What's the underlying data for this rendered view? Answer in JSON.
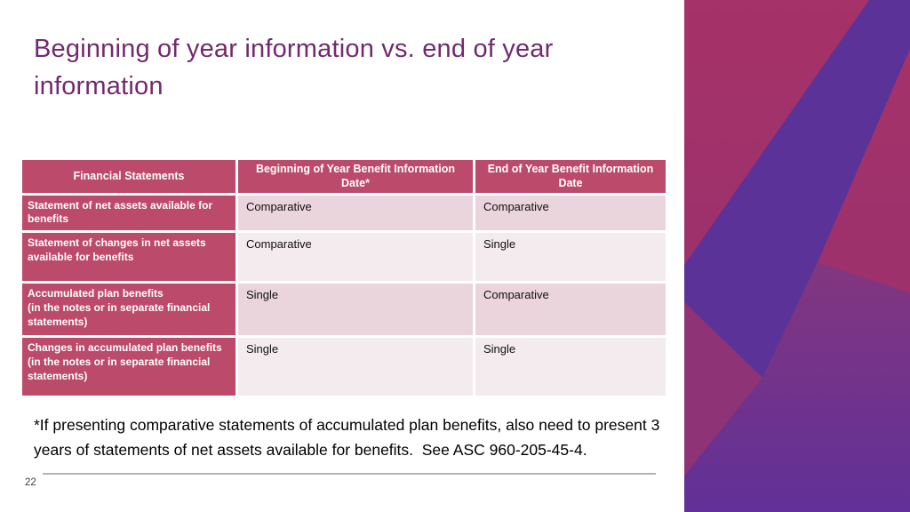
{
  "slide": {
    "title": "Beginning of year information vs. end of year information",
    "footnote": "*If presenting comparative statements of accumulated plan benefits, also need to present 3 years of statements of net assets available for benefits.  See ASC 960-205-45-4.",
    "page_number": "22"
  },
  "table": {
    "columns": [
      "Financial Statements",
      "Beginning of Year Benefit Information\nDate*",
      "End of Year Benefit Information\nDate"
    ],
    "rows": [
      {
        "label": "Statement of net assets available for benefits",
        "beginning": "Comparative",
        "end": "Comparative"
      },
      {
        "label": "Statement of changes in net assets available for benefits",
        "beginning": "Comparative",
        "end": "Single"
      },
      {
        "label": "Accumulated plan benefits\n(in the notes or in separate financial statements)",
        "beginning": "Single",
        "end": "Comparative"
      },
      {
        "label": "Changes in accumulated plan benefits\n(in the notes or in separate financial statements)",
        "beginning": "Single",
        "end": "Single"
      }
    ]
  },
  "colors": {
    "title": "#722A6E",
    "table_header_bg": "#BC4A6B",
    "band_dark": "#E9D5DB",
    "band_light": "#F3EBED",
    "rule": "#B3B3B3",
    "page_number": "#404040",
    "sidebar_magenta_top": "#A53268",
    "sidebar_magenta_bottom": "#953070",
    "sidebar_purple_band": "#5B3298",
    "sidebar_mauve_top": "#82367F",
    "sidebar_mauve_bottom": "#613098",
    "sidebar_light_wedge": "#8D3376"
  }
}
